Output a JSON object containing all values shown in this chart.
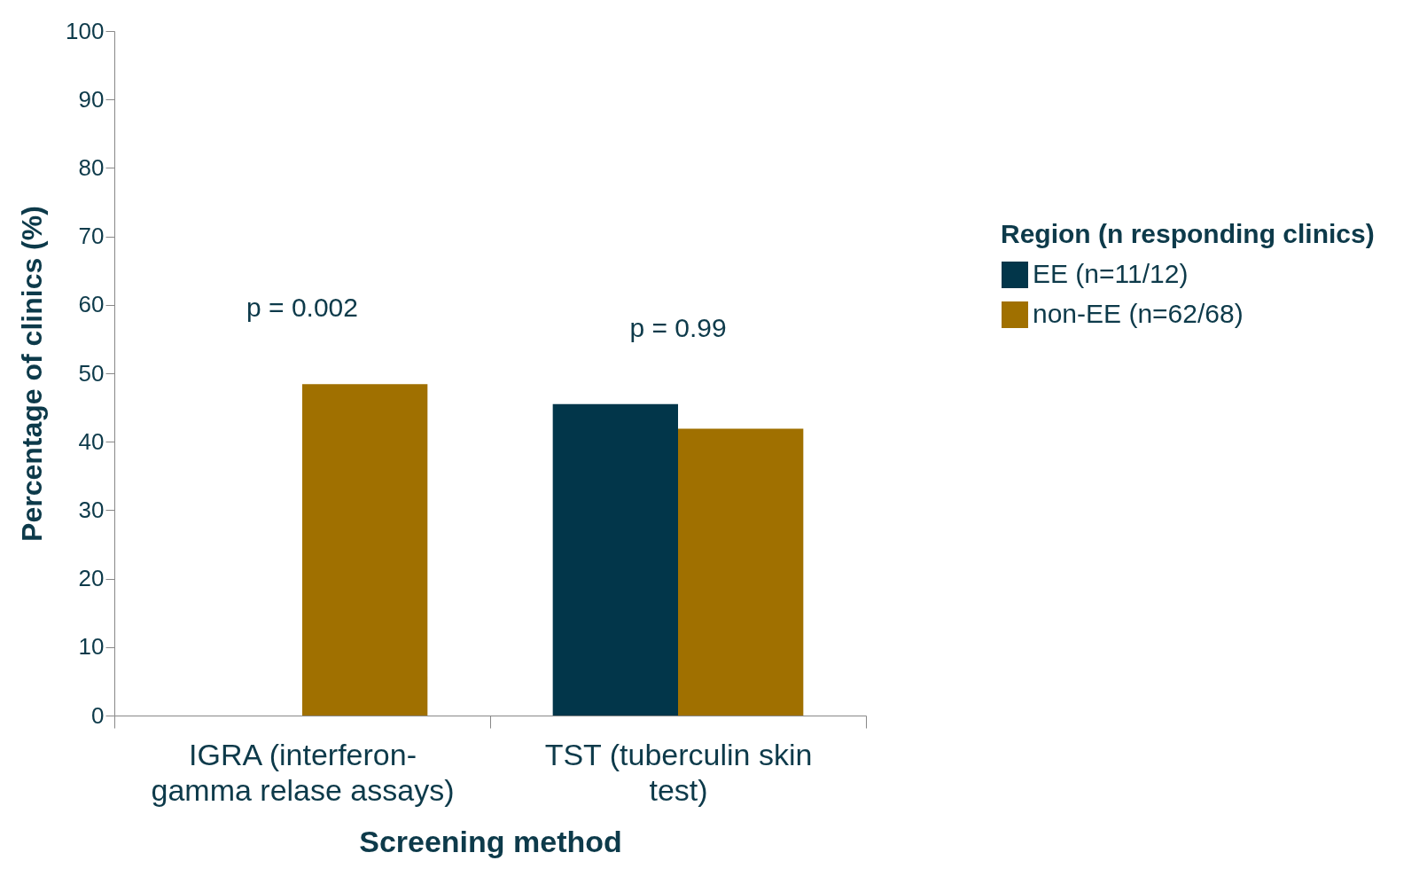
{
  "chart_data": {
    "type": "bar",
    "xlabel": "Screening method",
    "ylabel": "Percentage of clinics (%)",
    "legend_title": "Region (n responding clinics)",
    "categories": [
      "IGRA (interferon-gamma relase assays)",
      "TST (tuberculin skin test)"
    ],
    "series": [
      {
        "name": "EE (n=11/12)",
        "color": "#02364a",
        "values": [
          0,
          45.5
        ]
      },
      {
        "name": "non-EE (n=62/68)",
        "color": "#a07000",
        "values": [
          48.4,
          41.9
        ]
      }
    ],
    "ylim": [
      0,
      100
    ],
    "yticks": [
      0,
      10,
      20,
      30,
      40,
      50,
      60,
      70,
      80,
      90,
      100
    ],
    "grid": false,
    "legend": "right",
    "annotations": [
      "p = 0.002",
      "p = 0.99"
    ]
  }
}
